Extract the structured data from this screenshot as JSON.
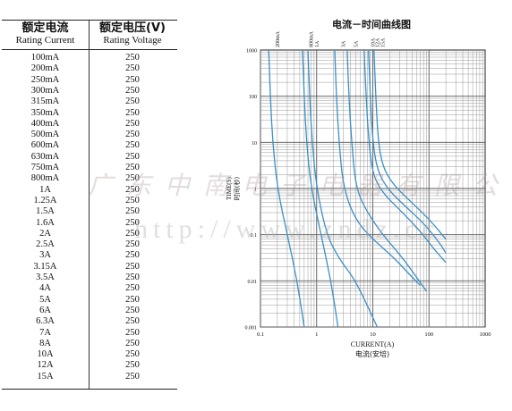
{
  "table": {
    "header_current_zh": "额定电流",
    "header_current_en": "Rating Current",
    "header_voltage_zh": "额定电压(V)",
    "header_voltage_en": "Rating Voltage",
    "rows": [
      {
        "current": "100mA",
        "voltage": "250"
      },
      {
        "current": "200mA",
        "voltage": "250"
      },
      {
        "current": "250mA",
        "voltage": "250"
      },
      {
        "current": "300mA",
        "voltage": "250"
      },
      {
        "current": "315mA",
        "voltage": "250"
      },
      {
        "current": "350mA",
        "voltage": "250"
      },
      {
        "current": "400mA",
        "voltage": "250"
      },
      {
        "current": "500mA",
        "voltage": "250"
      },
      {
        "current": "600mA",
        "voltage": "250"
      },
      {
        "current": "630mA",
        "voltage": "250"
      },
      {
        "current": "750mA",
        "voltage": "250"
      },
      {
        "current": "800mA",
        "voltage": "250"
      },
      {
        "current": "1A",
        "voltage": "250"
      },
      {
        "current": "1.25A",
        "voltage": "250"
      },
      {
        "current": "1.5A",
        "voltage": "250"
      },
      {
        "current": "1.6A",
        "voltage": "250"
      },
      {
        "current": "2A",
        "voltage": "250"
      },
      {
        "current": "2.5A",
        "voltage": "250"
      },
      {
        "current": "3A",
        "voltage": "250"
      },
      {
        "current": "3.15A",
        "voltage": "250"
      },
      {
        "current": "3.5A",
        "voltage": "250"
      },
      {
        "current": "4A",
        "voltage": "250"
      },
      {
        "current": "5A",
        "voltage": "250"
      },
      {
        "current": "6A",
        "voltage": "250"
      },
      {
        "current": "6.3A",
        "voltage": "250"
      },
      {
        "current": "7A",
        "voltage": "250"
      },
      {
        "current": "8A",
        "voltage": "250"
      },
      {
        "current": "10A",
        "voltage": "250"
      },
      {
        "current": "12A",
        "voltage": "250"
      },
      {
        "current": "15A",
        "voltage": "250"
      }
    ]
  },
  "watermark": {
    "company": "广东中南电子电器有限公司",
    "url": "http://www.zndz.cc"
  },
  "chart_data": {
    "type": "line",
    "title": "电流－时间曲线图",
    "xlabel": "CURRENT(A)",
    "xlabel_zh": "电流(安培)",
    "ylabel": "TIME(S)",
    "ylabel_zh": "时间(秒)",
    "x_scale": "log",
    "y_scale": "log",
    "xlim": [
      0.1,
      1000
    ],
    "ylim": [
      0.001,
      1000
    ],
    "x_tick_labels": [
      "0.1",
      "1",
      "10",
      "100",
      "1000"
    ],
    "y_tick_labels": [
      "0.001",
      "0.01",
      "0.1",
      "1",
      "10",
      "100",
      "1000"
    ],
    "grid": true,
    "line_color": "#3b8fc4",
    "top_labels": [
      "200mA",
      "800mA",
      "1A",
      "3A",
      "5A",
      "10A",
      "12A",
      "15A"
    ],
    "top_label_x": [
      0.2,
      0.8,
      1.0,
      3.0,
      5.0,
      10,
      12,
      15
    ],
    "series": [
      {
        "points": [
          [
            0.14,
            1000
          ],
          [
            0.15,
            100
          ],
          [
            0.165,
            10
          ],
          [
            0.2,
            1
          ],
          [
            0.3,
            0.1
          ],
          [
            0.45,
            0.01
          ],
          [
            0.6,
            0.001
          ]
        ]
      },
      {
        "points": [
          [
            0.56,
            1000
          ],
          [
            0.6,
            100
          ],
          [
            0.66,
            10
          ],
          [
            0.8,
            1
          ],
          [
            1.2,
            0.1
          ],
          [
            1.8,
            0.01
          ],
          [
            2.4,
            0.001
          ]
        ]
      },
      {
        "points": [
          [
            0.7,
            1000
          ],
          [
            0.75,
            100
          ],
          [
            0.83,
            10
          ],
          [
            1.0,
            1
          ],
          [
            1.5,
            0.1
          ],
          [
            2.5,
            0.03
          ],
          [
            5,
            0.01
          ],
          [
            12,
            0.001
          ]
        ]
      },
      {
        "points": [
          [
            2.1,
            1000
          ],
          [
            2.25,
            100
          ],
          [
            2.5,
            10
          ],
          [
            3.0,
            1
          ],
          [
            5,
            0.2
          ],
          [
            10,
            0.08
          ],
          [
            25,
            0.03
          ],
          [
            50,
            0.012
          ],
          [
            70,
            0.008
          ]
        ]
      },
      {
        "points": [
          [
            3.5,
            1000
          ],
          [
            3.75,
            100
          ],
          [
            4.2,
            10
          ],
          [
            5,
            1
          ],
          [
            8,
            0.3
          ],
          [
            15,
            0.1
          ],
          [
            35,
            0.03
          ],
          [
            60,
            0.012
          ],
          [
            90,
            0.006
          ]
        ]
      },
      {
        "points": [
          [
            7,
            1000
          ],
          [
            7.6,
            100
          ],
          [
            8.5,
            10
          ],
          [
            10,
            2
          ],
          [
            15,
            0.8
          ],
          [
            30,
            0.35
          ],
          [
            70,
            0.12
          ],
          [
            120,
            0.05
          ],
          [
            200,
            0.025
          ]
        ]
      },
      {
        "points": [
          [
            8.4,
            1000
          ],
          [
            9,
            100
          ],
          [
            10,
            10
          ],
          [
            12,
            2.5
          ],
          [
            18,
            1
          ],
          [
            35,
            0.45
          ],
          [
            80,
            0.18
          ],
          [
            150,
            0.07
          ],
          [
            200,
            0.04
          ]
        ]
      },
      {
        "points": [
          [
            10.5,
            1000
          ],
          [
            11.3,
            100
          ],
          [
            12.5,
            10
          ],
          [
            15,
            3
          ],
          [
            22,
            1.3
          ],
          [
            45,
            0.55
          ],
          [
            100,
            0.22
          ],
          [
            200,
            0.08
          ]
        ]
      }
    ]
  }
}
